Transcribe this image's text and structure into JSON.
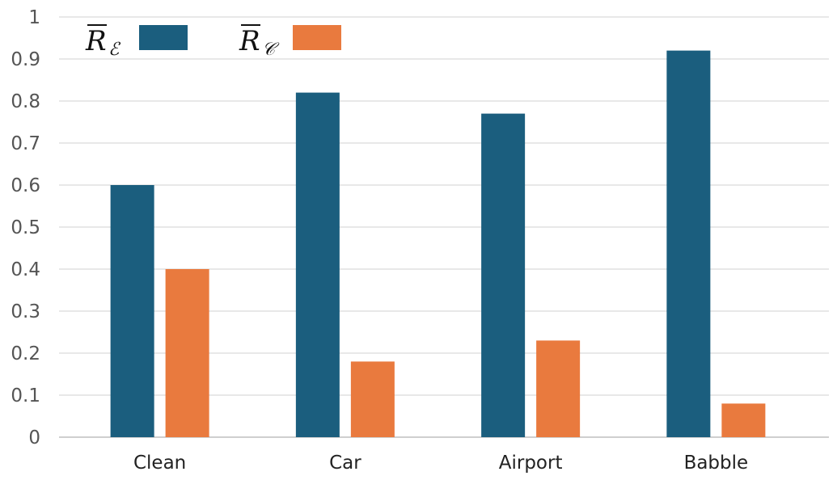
{
  "chart_data": {
    "type": "bar",
    "categories": [
      "Clean",
      "Car",
      "Airport",
      "Babble"
    ],
    "series": [
      {
        "name": "R",
        "subscript": "ℰ",
        "color": "#1b5e7e",
        "values": [
          0.6,
          0.82,
          0.77,
          0.92
        ]
      },
      {
        "name": "R",
        "subscript": "𝒞",
        "color": "#e97a3e",
        "values": [
          0.4,
          0.18,
          0.23,
          0.08
        ]
      }
    ],
    "yticks": [
      "0",
      "0.1",
      "0.2",
      "0.3",
      "0.4",
      "0.5",
      "0.6",
      "0.7",
      "0.8",
      "0.9",
      "1"
    ],
    "ylim": [
      0,
      1
    ],
    "grid": true,
    "legend_position": "top-left"
  }
}
